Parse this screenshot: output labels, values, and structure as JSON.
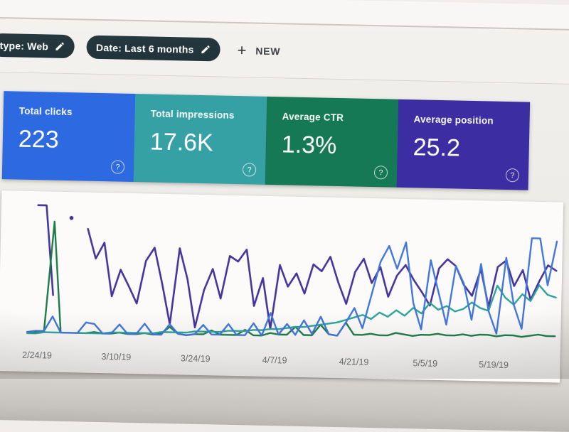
{
  "header": {
    "chips": [
      {
        "label": "type: Web"
      },
      {
        "label": "Date: Last 6 months"
      }
    ],
    "new_button": {
      "plus": "+",
      "label": "NEW"
    }
  },
  "cards": [
    {
      "label": "Total clicks",
      "value": "223",
      "color": "#2b6ae6"
    },
    {
      "label": "Total impressions",
      "value": "17.6K",
      "color": "#31a2a5"
    },
    {
      "label": "Average CTR",
      "value": "1.3%",
      "color": "#127a55"
    },
    {
      "label": "Average position",
      "value": "25.2",
      "color": "#3c2ea6"
    }
  ],
  "ui": {
    "help_glyph": "?",
    "chip_background": "#1e3138",
    "page_background": "#efedea",
    "panel_background": "#fcfbf9",
    "axis_label_color": "#6e7276"
  },
  "chart_data": {
    "type": "line",
    "title": "",
    "xlabel": "",
    "ylabel": "",
    "grid": false,
    "y_axis_visible": false,
    "legend_position": "none",
    "x_labels": [
      "2/24/19",
      "3/10/19",
      "3/24/19",
      "4/7/19",
      "4/21/19",
      "5/5/19",
      "5/19/19"
    ],
    "x_label_positions_pct": [
      6.9,
      21.0,
      35.1,
      49.2,
      63.3,
      76.0,
      88.2
    ],
    "note": "Daily values estimated from pixels; no y-axis labels shown. values_pct = percent of plot height from baseline. null = gap in line.",
    "series": [
      {
        "name": "Total clicks",
        "color": "#3f76e0",
        "values_pct": [
          2,
          3,
          3,
          14,
          2,
          2,
          2,
          10,
          9,
          2,
          2,
          9,
          2,
          2,
          10,
          2,
          2,
          10,
          3,
          2,
          3,
          10,
          3,
          3,
          11,
          3,
          3,
          12,
          3,
          20,
          4,
          12,
          4,
          15,
          5,
          18,
          5,
          4,
          14,
          25,
          10,
          35,
          60,
          72,
          55,
          75,
          30,
          10,
          62,
          38,
          14,
          58,
          45,
          18,
          60,
          25,
          8,
          65,
          30,
          12,
          80,
          80,
          45,
          78
        ]
      },
      {
        "name": "Total impressions",
        "color": "#29a39b",
        "values_pct": [
          1,
          1,
          2,
          2,
          2,
          2,
          2,
          2,
          2,
          2,
          3,
          3,
          3,
          3,
          3,
          3,
          4,
          4,
          4,
          4,
          5,
          5,
          5,
          5,
          6,
          6,
          6,
          7,
          7,
          8,
          8,
          9,
          10,
          10,
          11,
          12,
          13,
          14,
          16,
          18,
          20,
          17,
          22,
          19,
          24,
          20,
          26,
          22,
          30,
          25,
          28,
          24,
          26,
          31,
          27,
          25,
          44,
          35,
          30,
          38,
          33,
          45,
          38,
          36
        ]
      },
      {
        "name": "Average CTR",
        "color": "#197d46",
        "values_pct": [
          2,
          2,
          3,
          85,
          2,
          2,
          2,
          2,
          3,
          2,
          2,
          3,
          2,
          2,
          3,
          2,
          3,
          8,
          3,
          2,
          3,
          3,
          6,
          3,
          3,
          3,
          7,
          3,
          3,
          5,
          4,
          4,
          10,
          4,
          4,
          12,
          5,
          4,
          14,
          5,
          5,
          6,
          5,
          5,
          7,
          6,
          5,
          6,
          6,
          7,
          6,
          6,
          7,
          6,
          7,
          7,
          6,
          7,
          7,
          6,
          7,
          8,
          7,
          7
        ]
      },
      {
        "name": "Average position",
        "color": "#46339f",
        "values_pct": [
          null,
          97,
          97,
          30,
          null,
          88,
          null,
          80,
          58,
          70,
          30,
          50,
          38,
          25,
          57,
          67,
          40,
          10,
          67,
          44,
          8,
          36,
          52,
          30,
          62,
          58,
          67,
          25,
          46,
          8,
          56,
          40,
          50,
          35,
          57,
          52,
          63,
          44,
          28,
          52,
          62,
          44,
          56,
          34,
          50,
          58,
          47,
          38,
          28,
          56,
          63,
          58,
          44,
          36,
          56,
          28,
          58,
          63,
          44,
          56,
          34,
          48,
          60,
          56
        ]
      }
    ]
  }
}
